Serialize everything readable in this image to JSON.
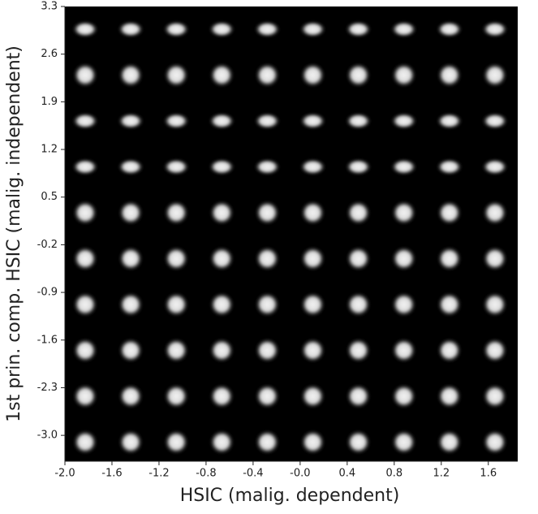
{
  "chart_data": {
    "type": "image_grid",
    "x_label": "HSIC (malig. dependent)",
    "y_label": "1st prin. comp. HSIC (malig. independent)",
    "xlim": [
      -2.0,
      1.85
    ],
    "ylim": [
      -3.38,
      3.3
    ],
    "xticks": [
      {
        "value": -2.0,
        "label": "-2.0"
      },
      -1.6,
      -1.2,
      -0.8,
      -0.4,
      {
        "value": 0,
        "label": "-0.0"
      },
      0.4,
      0.8,
      1.2,
      1.6
    ],
    "yticks": [
      {
        "value": -3.0,
        "label": "-3.0"
      },
      -2.3,
      -1.6,
      -0.9,
      -0.2,
      0.5,
      1.2,
      1.9,
      2.6,
      3.3
    ]
  }
}
